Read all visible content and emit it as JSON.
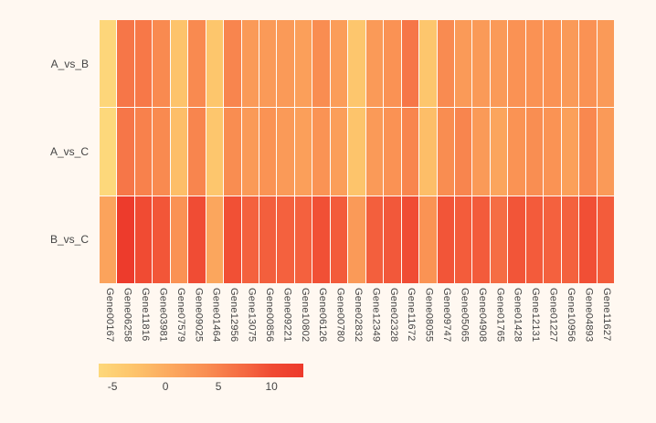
{
  "chart_data": {
    "type": "heatmap",
    "title": "",
    "xlabel": "",
    "ylabel": "",
    "rows": [
      "A_vs_B",
      "A_vs_C",
      "B_vs_C"
    ],
    "columns": [
      "Gene00167",
      "Gene06258",
      "Gene11816",
      "Gene03981",
      "Gene07579",
      "Gene09025",
      "Gene01464",
      "Gene12956",
      "Gene13075",
      "Gene00856",
      "Gene09221",
      "Gene10802",
      "Gene06126",
      "Gene00780",
      "Gene02832",
      "Gene12349",
      "Gene02328",
      "Gene11672",
      "Gene08055",
      "Gene09747",
      "Gene05065",
      "Gene04908",
      "Gene01765",
      "Gene01428",
      "Gene12131",
      "Gene01227",
      "Gene10956",
      "Gene04893",
      "Gene11627"
    ],
    "values": [
      [
        -6.0,
        6.1,
        6.0,
        4.2,
        -2.9,
        4.2,
        -3.3,
        4.7,
        2.2,
        2.2,
        2.2,
        1.6,
        3.9,
        1.9,
        -3.4,
        2.2,
        3.2,
        6.1,
        -3.4,
        4.1,
        2.2,
        2.2,
        2.2,
        3.2,
        3.2,
        3.3,
        2.2,
        3.2,
        2.2
      ],
      [
        -6.3,
        6.1,
        5.1,
        4.2,
        -2.2,
        4.7,
        -3.4,
        3.9,
        2.2,
        3.1,
        2.2,
        1.6,
        3.1,
        1.7,
        -3.0,
        2.2,
        3.2,
        4.7,
        -2.2,
        3.9,
        4.7,
        2.2,
        0.9,
        3.1,
        3.7,
        3.1,
        1.5,
        4.4,
        2.2
      ],
      [
        1.1,
        12.9,
        10.0,
        9.1,
        3.2,
        9.9,
        0.7,
        9.6,
        8.2,
        8.3,
        8.2,
        8.2,
        9.6,
        8.7,
        2.2,
        8.3,
        8.9,
        9.9,
        3.1,
        9.2,
        8.6,
        8.7,
        7.0,
        9.2,
        8.7,
        8.2,
        8.2,
        9.7,
        8.6
      ]
    ],
    "zmin": -6.3,
    "zmax": 13,
    "colorscale": [
      [
        -6.3,
        "#FDD87B"
      ],
      [
        -3.0,
        "#FDC46B"
      ],
      [
        0.0,
        "#FCAC60"
      ],
      [
        4.0,
        "#F98C51"
      ],
      [
        8.0,
        "#F4633F"
      ],
      [
        10.0,
        "#F04B33"
      ],
      [
        13.0,
        "#ED3A2C"
      ]
    ],
    "colorbar_ticks": [
      {
        "value": -5,
        "label": "-5"
      },
      {
        "value": 0,
        "label": "0"
      },
      {
        "value": 5,
        "label": "5"
      },
      {
        "value": 10,
        "label": "10"
      }
    ],
    "legend_position": "bottom-left",
    "grid": "off"
  },
  "colors": {
    "background": "#FFF8F1",
    "label_text": "#444444",
    "cell_gap": "rgba(255,255,255,0.55)"
  }
}
